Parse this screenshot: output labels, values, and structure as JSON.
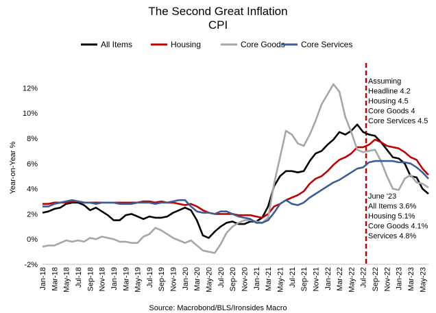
{
  "chart_data": {
    "type": "line",
    "title": "The Second Great Inflation",
    "subtitle": "CPI",
    "ylabel": "Year-on-Year %",
    "xlabel": "",
    "source": "Source: Macrobond/BLS/Ironsides Macro",
    "ylim": [
      -2,
      13
    ],
    "yticks": [
      "-2%",
      "0%",
      "2%",
      "4%",
      "6%",
      "8%",
      "10%",
      "12%"
    ],
    "ytick_values": [
      -2,
      0,
      2,
      4,
      6,
      8,
      10,
      12
    ],
    "grid": false,
    "legend_position": "top",
    "x": [
      "Jan-18",
      "Feb-18",
      "Mar-18",
      "Apr-18",
      "May-18",
      "Jun-18",
      "Jul-18",
      "Aug-18",
      "Sep-18",
      "Oct-18",
      "Nov-18",
      "Dec-18",
      "Jan-19",
      "Feb-19",
      "Mar-19",
      "Apr-19",
      "May-19",
      "Jun-19",
      "Jul-19",
      "Aug-19",
      "Sep-19",
      "Oct-19",
      "Nov-19",
      "Dec-19",
      "Jan-20",
      "Feb-20",
      "Mar-20",
      "Apr-20",
      "May-20",
      "Jun-20",
      "Jul-20",
      "Aug-20",
      "Sep-20",
      "Oct-20",
      "Nov-20",
      "Dec-20",
      "Jan-21",
      "Feb-21",
      "Mar-21",
      "Apr-21",
      "May-21",
      "Jun-21",
      "Jul-21",
      "Aug-21",
      "Sep-21",
      "Oct-21",
      "Nov-21",
      "Dec-21",
      "Jan-22",
      "Feb-22",
      "Mar-22",
      "Apr-22",
      "May-22",
      "Jun-22",
      "Jul-22",
      "Aug-22",
      "Sep-22",
      "Oct-22",
      "Nov-22",
      "Dec-22",
      "Jan-23",
      "Feb-23",
      "Mar-23",
      "Apr-23",
      "May-23",
      "Jun-23"
    ],
    "xtick_labels": [
      "Jan-18",
      "Mar-18",
      "May-18",
      "Jul-18",
      "Sep-18",
      "Nov-18",
      "Jan-19",
      "Mar-19",
      "May-19",
      "Jul-19",
      "Sep-19",
      "Nov-19",
      "Jan-20",
      "Mar-20",
      "May-20",
      "Jul-20",
      "Sep-20",
      "Nov-20",
      "Jan-21",
      "Mar-21",
      "May-21",
      "Jul-21",
      "Sep-21",
      "Nov-21",
      "Jan-22",
      "Mar-22",
      "May-22",
      "Jul-22",
      "Sep-22",
      "Nov-22",
      "Jan-23",
      "Mar-23",
      "May-23"
    ],
    "series": [
      {
        "name": "All Items",
        "color": "#000000",
        "values": [
          2.1,
          2.2,
          2.4,
          2.5,
          2.8,
          2.9,
          2.9,
          2.7,
          2.3,
          2.5,
          2.2,
          1.9,
          1.5,
          1.5,
          1.9,
          2.0,
          1.8,
          1.6,
          1.8,
          1.7,
          1.7,
          1.8,
          2.1,
          2.3,
          2.5,
          2.3,
          1.5,
          0.3,
          0.1,
          0.6,
          1.0,
          1.3,
          1.4,
          1.2,
          1.2,
          1.4,
          1.4,
          1.7,
          2.6,
          4.2,
          5.0,
          5.4,
          5.4,
          5.3,
          5.4,
          6.2,
          6.8,
          7.0,
          7.5,
          7.9,
          8.5,
          8.3,
          8.6,
          9.1,
          8.5,
          8.3,
          8.2,
          7.7,
          7.1,
          6.5,
          6.4,
          6.0,
          5.0,
          4.9,
          4.0,
          3.6
        ]
      },
      {
        "name": "Housing",
        "color": "#c00000",
        "values": [
          2.8,
          2.8,
          2.9,
          2.9,
          2.9,
          3.0,
          3.0,
          2.9,
          2.9,
          2.9,
          2.9,
          2.9,
          2.9,
          2.9,
          2.9,
          2.9,
          2.9,
          3.0,
          3.0,
          2.9,
          3.0,
          2.9,
          2.9,
          2.8,
          2.7,
          2.8,
          2.6,
          2.3,
          2.1,
          2.0,
          2.0,
          2.0,
          2.0,
          1.9,
          1.9,
          1.9,
          1.8,
          1.7,
          2.0,
          2.6,
          2.8,
          3.1,
          3.3,
          3.5,
          3.8,
          4.4,
          4.8,
          5.0,
          5.4,
          5.9,
          6.3,
          6.5,
          6.8,
          7.3,
          7.3,
          7.5,
          7.9,
          7.7,
          7.4,
          7.3,
          7.2,
          6.9,
          6.5,
          6.3,
          5.6,
          5.1
        ]
      },
      {
        "name": "Core Goods",
        "color": "#a6a6a6",
        "values": [
          -0.6,
          -0.5,
          -0.5,
          -0.3,
          -0.1,
          -0.2,
          -0.1,
          -0.2,
          0.1,
          0.0,
          0.2,
          0.1,
          0.0,
          -0.2,
          -0.2,
          -0.3,
          -0.3,
          0.2,
          0.4,
          0.9,
          0.7,
          0.4,
          0.1,
          -0.1,
          -0.3,
          -0.1,
          -0.5,
          -0.9,
          -1.0,
          -1.1,
          -0.4,
          0.5,
          1.0,
          1.3,
          1.5,
          1.5,
          1.4,
          1.3,
          1.7,
          4.4,
          6.5,
          8.6,
          8.3,
          7.6,
          7.4,
          8.3,
          9.4,
          10.7,
          11.5,
          12.3,
          11.7,
          9.7,
          8.5,
          7.1,
          6.9,
          7.0,
          7.1,
          6.2,
          5.0,
          4.0,
          3.9,
          4.8,
          5.1,
          4.5,
          4.4,
          4.1
        ]
      },
      {
        "name": "Core Services",
        "color": "#3b5c96",
        "values": [
          2.6,
          2.6,
          2.8,
          2.9,
          3.0,
          3.1,
          3.0,
          2.9,
          2.9,
          2.8,
          2.9,
          2.9,
          2.9,
          2.8,
          2.8,
          2.8,
          2.9,
          2.9,
          2.9,
          2.8,
          2.9,
          2.9,
          3.0,
          3.1,
          3.1,
          2.6,
          2.2,
          2.1,
          2.1,
          2.0,
          2.2,
          2.2,
          2.0,
          1.8,
          1.7,
          1.6,
          1.3,
          1.3,
          1.5,
          2.1,
          2.8,
          3.1,
          2.8,
          2.7,
          2.9,
          3.3,
          3.6,
          3.9,
          4.2,
          4.5,
          4.7,
          5.0,
          5.3,
          5.6,
          5.7,
          6.1,
          6.2,
          6.2,
          6.2,
          6.2,
          6.1,
          6.1,
          6.0,
          5.7,
          5.3,
          4.8
        ]
      }
    ],
    "vline": {
      "x": "Jul-22",
      "color": "#c00000",
      "style": "dashed"
    },
    "annotations": {
      "assuming": [
        "Assuming",
        "Headline 4.2",
        "Housing 4.5",
        "Core Goods 4",
        "Core Services 4.5"
      ],
      "june": [
        "June '23",
        "All Items 3.6%",
        "Housing 5.1%",
        "Core Goods 4.1%",
        "Services 4.8%"
      ]
    }
  }
}
